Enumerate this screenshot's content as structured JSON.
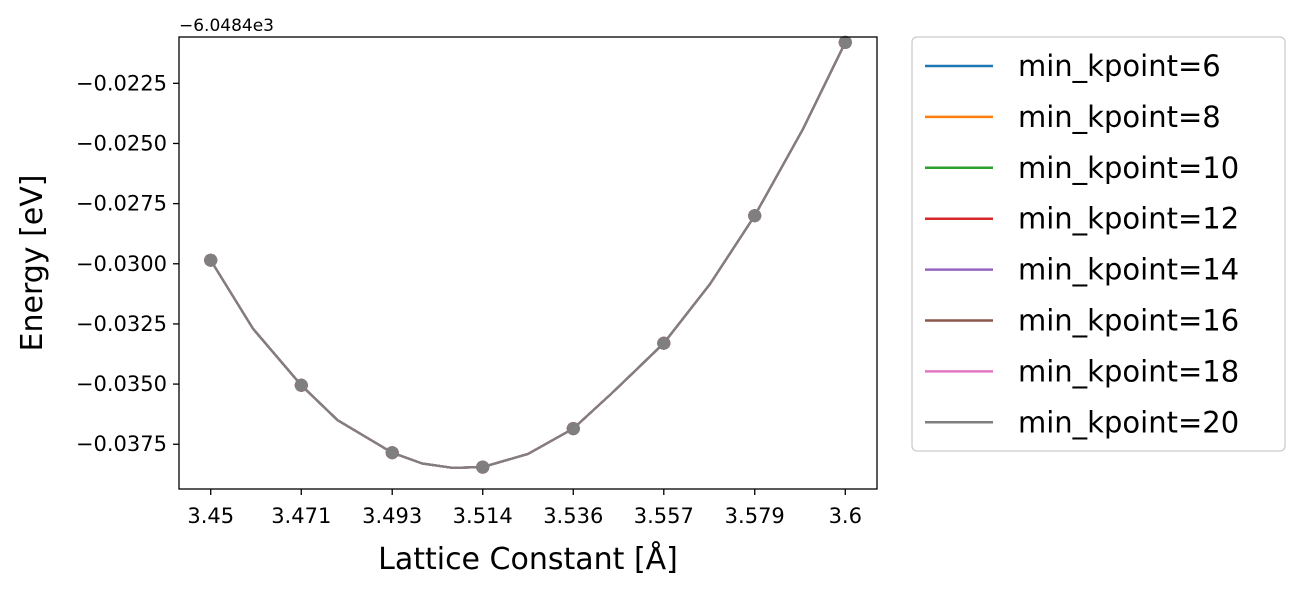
{
  "chart_data": {
    "type": "line",
    "title": "",
    "xlabel": "Lattice Constant [Å]",
    "ylabel": "Energy [eV]",
    "y_offset_text": "−6.0484e3",
    "x_ticks": [
      "3.45",
      "3.471",
      "3.493",
      "3.514",
      "3.536",
      "3.557",
      "3.579",
      "3.6"
    ],
    "y_ticks": [
      "−0.0225",
      "−0.0250",
      "−0.0275",
      "−0.0300",
      "−0.0325",
      "−0.0350",
      "−0.0375"
    ],
    "y_tick_values": [
      -0.0225,
      -0.025,
      -0.0275,
      -0.03,
      -0.0325,
      -0.035,
      -0.0375
    ],
    "xlim": [
      3.4425,
      3.6075
    ],
    "ylim": [
      -0.03936,
      -0.020575
    ],
    "grid": false,
    "legend_position": "outside-right",
    "x": [
      3.45,
      3.4714,
      3.4929,
      3.5143,
      3.5357,
      3.5571,
      3.5786,
      3.6
    ],
    "points": [
      -0.02985,
      -0.03505,
      -0.03785,
      -0.03845,
      -0.03685,
      -0.0333,
      -0.028,
      -0.0208
    ],
    "fit": [
      [
        3.45,
        -0.02985
      ],
      [
        3.46,
        -0.0327
      ],
      [
        3.4714,
        -0.03505
      ],
      [
        3.48,
        -0.0365
      ],
      [
        3.4929,
        -0.03785
      ],
      [
        3.5,
        -0.0383
      ],
      [
        3.5071,
        -0.03848
      ],
      [
        3.5143,
        -0.03845
      ],
      [
        3.525,
        -0.0379
      ],
      [
        3.5357,
        -0.03685
      ],
      [
        3.545,
        -0.03535
      ],
      [
        3.5571,
        -0.0333
      ],
      [
        3.568,
        -0.03085
      ],
      [
        3.5786,
        -0.028
      ],
      [
        3.59,
        -0.0244
      ],
      [
        3.6,
        -0.0208
      ]
    ],
    "series": [
      {
        "name": "min_kpoint=6",
        "color": "#1f77b4"
      },
      {
        "name": "min_kpoint=8",
        "color": "#ff7f0e"
      },
      {
        "name": "min_kpoint=10",
        "color": "#2ca02c"
      },
      {
        "name": "min_kpoint=12",
        "color": "#d62728"
      },
      {
        "name": "min_kpoint=14",
        "color": "#9467bd"
      },
      {
        "name": "min_kpoint=16",
        "color": "#8c564b"
      },
      {
        "name": "min_kpoint=18",
        "color": "#e377c2"
      },
      {
        "name": "min_kpoint=20",
        "color": "#7f7f7f"
      }
    ]
  }
}
